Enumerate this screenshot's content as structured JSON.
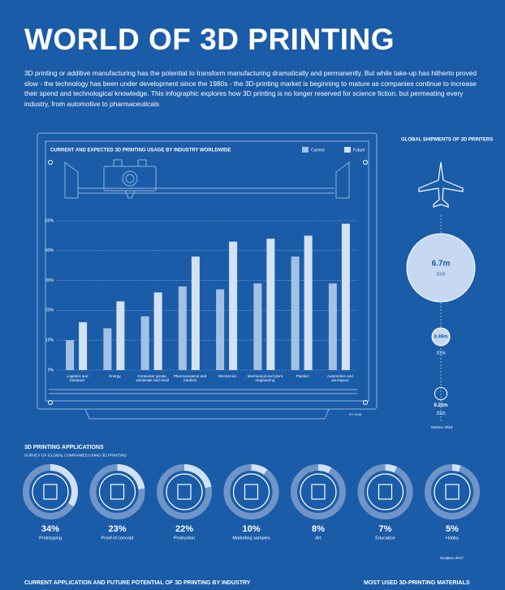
{
  "header": {
    "title": "WORLD OF 3D PRINTING",
    "intro": "3D printing or additive manufacturing has the potential to transform manufacturing dramatically and permanently. But while take-up has hitherto proved slow - the technology has been under development since the 1980s - the 3D-printing market is beginning to mature as companies continue to increase their spend and technological knowledge. This infographic explores how 3D printing is no longer reserved for science fiction, but permeating every industry, from automotive to pharmaceuticals"
  },
  "chart_data": {
    "type": "bar",
    "title": "CURRENT AND EXPECTED 3D PRINTING USAGE BY INDUSTRY WORLDWIDE",
    "source": "EY 2016",
    "categories": [
      "Logistics and transport",
      "Energy",
      "Consumer goods, wholesale and retail",
      "Pharmaceutical and medical",
      "Electronics",
      "Mechanical and plant engineering",
      "Plastics",
      "Automotive and aerospace"
    ],
    "series": [
      {
        "name": "Current",
        "color": "#a3c1e4",
        "values": [
          10,
          14,
          18,
          28,
          27,
          29,
          38,
          29
        ]
      },
      {
        "name": "Future",
        "color": "#d2e2f4",
        "values": [
          16,
          23,
          26,
          38,
          43,
          44,
          45,
          49
        ]
      }
    ],
    "ylim": [
      0,
      50
    ],
    "yticks": [
      {
        "value": 0,
        "label": "0%"
      },
      {
        "value": 10,
        "label": "10%"
      },
      {
        "value": 20,
        "label": "20%"
      },
      {
        "value": 30,
        "label": "30%"
      },
      {
        "value": 40,
        "label": "40%"
      },
      {
        "value": 50,
        "label": "50%"
      }
    ],
    "grid": true,
    "legend": "top-right"
  },
  "shipments": {
    "title": "GLOBAL SHIPMENTS OF 3D PRINTERS",
    "source": "Gartner 2016",
    "items": [
      {
        "year": "2020",
        "value": 6.7,
        "value_label": "6.7m"
      },
      {
        "year": "2016",
        "value": 0.46,
        "value_label": "0.46m"
      },
      {
        "year": "2015",
        "value": 0.22,
        "value_label": "0.22m"
      }
    ]
  },
  "applications": {
    "title": "3D PRINTING APPLICATIONS",
    "subtitle": "SURVEY OF GLOBAL COMPANIES USING 3D PRINTING",
    "source": "Sculpteo 2017",
    "items": [
      {
        "name": "Prototyping",
        "value": 34,
        "value_label": "34%"
      },
      {
        "name": "Proof of concept",
        "value": 23,
        "value_label": "23%"
      },
      {
        "name": "Production",
        "value": 22,
        "value_label": "22%"
      },
      {
        "name": "Marketing samples",
        "value": 10,
        "value_label": "10%"
      },
      {
        "name": "Art",
        "value": 8,
        "value_label": "8%"
      },
      {
        "name": "Education",
        "value": 7,
        "value_label": "7%"
      },
      {
        "name": "Hobby",
        "value": 5,
        "value_label": "5%"
      }
    ]
  },
  "footer": {
    "left_heading": "CURRENT APPLICATION AND FUTURE POTENTIAL OF 3D PRINTING BY INDUSTRY",
    "right_heading": "MOST USED 3D-PRINTING MATERIALS"
  }
}
